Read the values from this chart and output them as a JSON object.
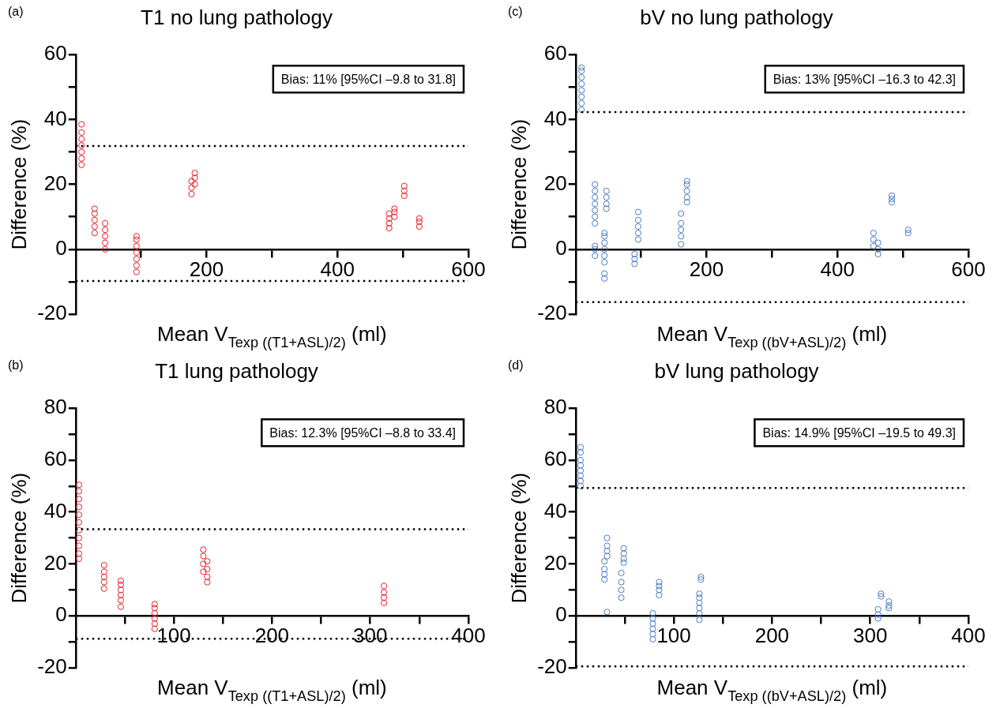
{
  "chart_data": [
    {
      "type": "scatter",
      "title": "T1 no lung pathology",
      "xlabel": "Mean V$_{Texp ((T1+ASL)/2)}$ (ml)",
      "ylabel": "Difference (%)",
      "annotations": [
        "(a)",
        "Bias: 11% [95%CI –9.8 to 31.8]"
      ],
      "marker": "circle",
      "xlim": [
        0,
        600
      ],
      "xticks": [
        {
          "value": 100,
          "label": null
        },
        200,
        {
          "value": 300,
          "label": null
        },
        400,
        {
          "value": 500,
          "label": null
        },
        600
      ],
      "ylim": [
        -20,
        60
      ],
      "yticks": [
        -20,
        {
          "value": -10,
          "label": null
        },
        0,
        {
          "value": 10,
          "label": null
        },
        20,
        {
          "value": 30,
          "label": null
        },
        40,
        {
          "value": 50,
          "label": null
        },
        60
      ],
      "ref_lines": [
        {
          "axis": "y",
          "value": 31.8,
          "color": "#000000",
          "line_style": "dotted"
        },
        {
          "axis": "y",
          "value": -9.8,
          "color": "#000000",
          "line_style": "dotted"
        }
      ],
      "series": [
        {
          "color": "#e8202a",
          "x": [
            9,
            9,
            9,
            9,
            9,
            9,
            9,
            29,
            29,
            29,
            29,
            29,
            45,
            45,
            45,
            45,
            45,
            93,
            93,
            93,
            93,
            93,
            93,
            93,
            177,
            177,
            177,
            182,
            182,
            182,
            479,
            479,
            479,
            479,
            487,
            487,
            487,
            502,
            502,
            502,
            525,
            525,
            525
          ],
          "values": [
            26,
            28,
            30,
            32,
            34,
            36,
            38.5,
            5,
            7,
            9,
            11,
            12.5,
            0,
            2,
            4,
            6,
            8,
            -7,
            -5,
            -3,
            -1,
            1,
            3,
            4,
            17,
            19,
            21,
            20,
            22,
            23.5,
            6.5,
            8,
            9.5,
            11,
            10,
            11.5,
            12.5,
            16.5,
            18,
            19.5,
            7,
            8.5,
            9.5
          ]
        }
      ]
    },
    {
      "type": "scatter",
      "title": "bV no lung pathology",
      "xlabel": "Mean V$_{Texp ((bV+ASL)/2)}$ (ml)",
      "ylabel": "Difference (%)",
      "annotations": [
        "(c)",
        "Bias: 13% [95%CI –16.3 to 42.3]"
      ],
      "marker": "circle",
      "xlim": [
        0,
        600
      ],
      "xticks": [
        {
          "value": 100,
          "label": null
        },
        200,
        {
          "value": 300,
          "label": null
        },
        400,
        {
          "value": 500,
          "label": null
        },
        600
      ],
      "ylim": [
        -20,
        60
      ],
      "yticks": [
        -20,
        {
          "value": -10,
          "label": null
        },
        0,
        {
          "value": 10,
          "label": null
        },
        20,
        {
          "value": 30,
          "label": null
        },
        40,
        {
          "value": 50,
          "label": null
        },
        60
      ],
      "ref_lines": [
        {
          "axis": "y",
          "value": 42.3,
          "color": "#000000",
          "line_style": "dotted"
        },
        {
          "axis": "y",
          "value": -16.3,
          "color": "#000000",
          "line_style": "dotted"
        }
      ],
      "series": [
        {
          "color": "#4a7cc4",
          "x": [
            9,
            9,
            9,
            9,
            9,
            9,
            9,
            9,
            29.5,
            29.5,
            29.5,
            29.5,
            29.5,
            29.5,
            29.5,
            29.5,
            29.5,
            29.5,
            44,
            44,
            44,
            44,
            44,
            44,
            44,
            44,
            47,
            47,
            47,
            47,
            90,
            90,
            90,
            95.5,
            95.5,
            95.5,
            95.5,
            95.5,
            161,
            161,
            161,
            161,
            161,
            170,
            170,
            170,
            170,
            170,
            455,
            455,
            455,
            462,
            462,
            462,
            483,
            483,
            483,
            508,
            508
          ],
          "values": [
            43,
            45,
            47,
            49,
            51,
            53,
            55,
            56,
            8,
            10,
            12,
            14,
            16,
            18,
            20,
            -2,
            0,
            1,
            -9,
            -7.5,
            -4,
            -2,
            0,
            2,
            4,
            5,
            12.5,
            14,
            16,
            18,
            -4.5,
            -3,
            -1.5,
            3,
            5,
            7,
            9,
            11.5,
            1.5,
            4,
            6,
            8,
            11,
            14.5,
            16,
            18,
            20,
            21,
            1,
            3,
            5,
            -1.5,
            0,
            2,
            14.5,
            15.5,
            16.5,
            5,
            6
          ]
        }
      ]
    },
    {
      "type": "scatter",
      "title": "T1 lung pathology",
      "xlabel": "Mean V$_{Texp ((T1+ASL)/2)}$ (ml)",
      "ylabel": "Difference (%)",
      "annotations": [
        "(b)",
        "Bias: 12.3% [95%CI –8.8 to 33.4]"
      ],
      "marker": "circle",
      "xlim": [
        0,
        400
      ],
      "xticks": [
        {
          "value": 50,
          "label": null
        },
        100,
        {
          "value": 150,
          "label": null
        },
        200,
        {
          "value": 250,
          "label": null
        },
        300,
        {
          "value": 350,
          "label": null
        },
        400
      ],
      "ylim": [
        -20,
        80
      ],
      "yticks": [
        -20,
        {
          "value": -10,
          "label": null
        },
        0,
        {
          "value": 10,
          "label": null
        },
        20,
        {
          "value": 30,
          "label": null
        },
        40,
        {
          "value": 50,
          "label": null
        },
        60,
        {
          "value": 70,
          "label": null
        },
        80
      ],
      "ref_lines": [
        {
          "axis": "y",
          "value": 33.4,
          "color": "#000000",
          "line_style": "dotted"
        },
        {
          "axis": "y",
          "value": -8.8,
          "color": "#000000",
          "line_style": "dotted"
        }
      ],
      "series": [
        {
          "color": "#e8202a",
          "x": [
            3.4,
            3.4,
            3.4,
            3.4,
            3.4,
            3.4,
            3.4,
            3.4,
            3.4,
            3.4,
            3.4,
            29,
            29,
            29,
            29,
            29,
            46,
            46,
            46,
            46,
            46,
            46,
            80.5,
            80.5,
            80.5,
            80.5,
            80.5,
            80.5,
            130,
            130,
            130,
            130,
            134,
            134,
            134,
            134,
            314,
            314,
            314,
            314
          ],
          "values": [
            22,
            24,
            27,
            30,
            33,
            36,
            39,
            42,
            45,
            48,
            50.5,
            10.5,
            13,
            15,
            17,
            19.5,
            3.5,
            6,
            8,
            10,
            12,
            13.5,
            -5,
            -3,
            -1,
            1,
            3,
            4.5,
            17,
            20,
            23,
            25.5,
            13,
            15,
            18,
            21,
            5,
            7,
            9,
            11.5
          ]
        }
      ]
    },
    {
      "type": "scatter",
      "title": "bV lung pathology",
      "xlabel": "Mean V$_{Texp ((bV+ASL)/2)}$ (ml)",
      "ylabel": "Difference (%)",
      "annotations": [
        "(d)",
        "Bias: 14.9% [95%CI –19.5 to 49.3]"
      ],
      "marker": "circle",
      "xlim": [
        0,
        400
      ],
      "xticks": [
        {
          "value": 50,
          "label": null
        },
        100,
        {
          "value": 150,
          "label": null
        },
        200,
        {
          "value": 250,
          "label": null
        },
        300,
        {
          "value": 350,
          "label": null
        },
        400
      ],
      "ylim": [
        -20,
        80
      ],
      "yticks": [
        -20,
        {
          "value": -10,
          "label": null
        },
        0,
        {
          "value": 10,
          "label": null
        },
        20,
        {
          "value": 30,
          "label": null
        },
        40,
        {
          "value": 50,
          "label": null
        },
        60,
        {
          "value": 70,
          "label": null
        },
        80
      ],
      "ref_lines": [
        {
          "axis": "y",
          "value": 49.3,
          "color": "#000000",
          "line_style": "dotted"
        },
        {
          "axis": "y",
          "value": -19.5,
          "color": "#000000",
          "line_style": "dotted"
        }
      ],
      "series": [
        {
          "color": "#4a7cc4",
          "x": [
            5,
            5,
            5,
            5,
            5,
            5,
            5,
            5,
            29.3,
            29.3,
            29.3,
            29.3,
            32,
            32,
            32,
            32,
            32,
            46.5,
            46.5,
            46.5,
            46.5,
            49,
            49,
            49,
            49,
            78.6,
            78.6,
            78.6,
            78.6,
            78.6,
            78.6,
            85,
            85,
            85,
            85,
            126,
            126,
            126,
            126,
            126,
            126,
            127.6,
            127.6,
            308,
            308,
            308,
            311,
            311,
            319,
            319,
            319
          ],
          "values": [
            50,
            52,
            54,
            56,
            58,
            60,
            63,
            65,
            14,
            16,
            18,
            21,
            23,
            25,
            27,
            30,
            1.5,
            7,
            10,
            13,
            16.5,
            20.5,
            22,
            24,
            26,
            -9,
            -7,
            -5,
            -3,
            -1,
            1,
            8,
            10,
            11.5,
            13,
            -1.5,
            1,
            3,
            5,
            7,
            8.5,
            14,
            15,
            -1,
            0.5,
            2.5,
            7.5,
            8.5,
            3,
            4,
            5.5
          ]
        }
      ]
    }
  ]
}
